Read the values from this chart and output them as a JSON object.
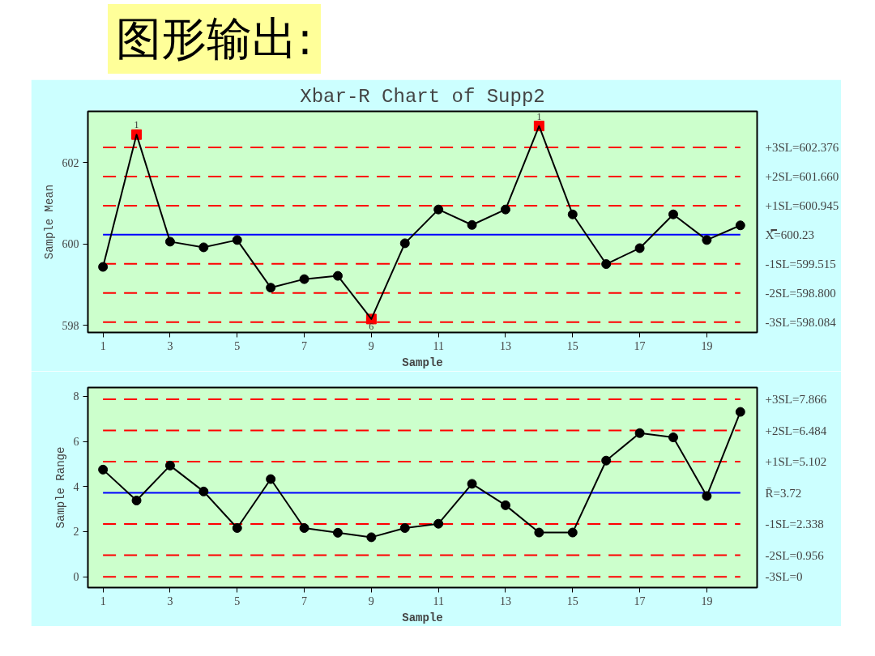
{
  "chart_data": [
    {
      "type": "line",
      "title": "Xbar-R Chart of Supp2",
      "xlabel": "Sample",
      "ylabel": "Sample Mean",
      "annotations": [
        "图形输出:",
        {
          "text": "1",
          "x": 2,
          "y": 602.69
        },
        {
          "text": "6",
          "x": 9,
          "y": 598.16
        },
        {
          "text": "1",
          "x": 14,
          "y": 602.9
        }
      ],
      "x": [
        1,
        2,
        3,
        4,
        5,
        6,
        7,
        8,
        9,
        10,
        11,
        12,
        13,
        14,
        15,
        16,
        17,
        18,
        19,
        20
      ],
      "series": [
        {
          "color": "#000000",
          "marker": "circle",
          "values": [
            599.44,
            602.69,
            600.06,
            599.92,
            600.1,
            598.93,
            599.14,
            599.22,
            598.16,
            600.02,
            600.85,
            600.47,
            600.85,
            602.9,
            600.73,
            599.51,
            599.9,
            600.73,
            600.1,
            600.46
          ]
        },
        {
          "type": "scatter",
          "color": "#ff0000",
          "marker": "square",
          "x": [
            2,
            9,
            14
          ],
          "values": [
            602.69,
            598.16,
            602.9
          ]
        }
      ],
      "xlim": [
        0.55,
        20.5
      ],
      "xticks": [
        1,
        3,
        5,
        7,
        9,
        11,
        13,
        15,
        17,
        19
      ],
      "ylim": [
        597.83,
        603.26
      ],
      "yticks": [
        598,
        600,
        602
      ],
      "grid": false,
      "ref_lines": [
        {
          "axis": "y",
          "value": 602.376,
          "label": "+3SL=602.376",
          "color": "#ff0000",
          "line_style": "dashed"
        },
        {
          "axis": "y",
          "value": 601.66,
          "label": "+2SL=601.660",
          "color": "#ff0000",
          "line_style": "dashed"
        },
        {
          "axis": "y",
          "value": 600.945,
          "label": "+1SL=600.945",
          "color": "#ff0000",
          "line_style": "dashed"
        },
        {
          "axis": "y",
          "value": 600.23,
          "label": "X̿=600.23",
          "color": "#0000ff",
          "line_style": "solid"
        },
        {
          "axis": "y",
          "value": 599.515,
          "label": "-1SL=599.515",
          "color": "#ff0000",
          "line_style": "dashed"
        },
        {
          "axis": "y",
          "value": 598.8,
          "label": "-2SL=598.800",
          "color": "#ff0000",
          "line_style": "dashed"
        },
        {
          "axis": "y",
          "value": 598.084,
          "label": "-3SL=598.084",
          "color": "#ff0000",
          "line_style": "dashed"
        }
      ]
    },
    {
      "type": "line",
      "xlabel": "Sample",
      "ylabel": "Sample Range",
      "x": [
        1,
        2,
        3,
        4,
        5,
        6,
        7,
        8,
        9,
        10,
        11,
        12,
        13,
        14,
        15,
        16,
        17,
        18,
        19,
        20
      ],
      "series": [
        {
          "color": "#000000",
          "marker": "circle",
          "values": [
            4.75,
            3.38,
            4.93,
            3.78,
            2.16,
            4.33,
            2.16,
            1.95,
            1.75,
            2.16,
            2.35,
            4.12,
            3.17,
            1.96,
            1.96,
            5.15,
            6.37,
            6.18,
            3.58,
            7.31
          ]
        }
      ],
      "xlim": [
        0.55,
        20.5
      ],
      "xticks": [
        1,
        3,
        5,
        7,
        9,
        11,
        13,
        15,
        17,
        19
      ],
      "ylim": [
        -0.48,
        8.39
      ],
      "yticks": [
        0,
        2,
        4,
        6,
        8
      ],
      "grid": false,
      "ref_lines": [
        {
          "axis": "y",
          "value": 7.866,
          "label": "+3SL=7.866",
          "color": "#ff0000",
          "line_style": "dashed"
        },
        {
          "axis": "y",
          "value": 6.484,
          "label": "+2SL=6.484",
          "color": "#ff0000",
          "line_style": "dashed"
        },
        {
          "axis": "y",
          "value": 5.102,
          "label": "+1SL=5.102",
          "color": "#ff0000",
          "line_style": "dashed"
        },
        {
          "axis": "y",
          "value": 3.72,
          "label": "R̄=3.72",
          "color": "#0000ff",
          "line_style": "solid"
        },
        {
          "axis": "y",
          "value": 2.338,
          "label": "-1SL=2.338",
          "color": "#ff0000",
          "line_style": "dashed"
        },
        {
          "axis": "y",
          "value": 0.956,
          "label": "-2SL=0.956",
          "color": "#ff0000",
          "line_style": "dashed"
        },
        {
          "axis": "y",
          "value": 0,
          "label": "-3SL=0",
          "color": "#ff0000",
          "line_style": "dashed"
        }
      ]
    }
  ]
}
